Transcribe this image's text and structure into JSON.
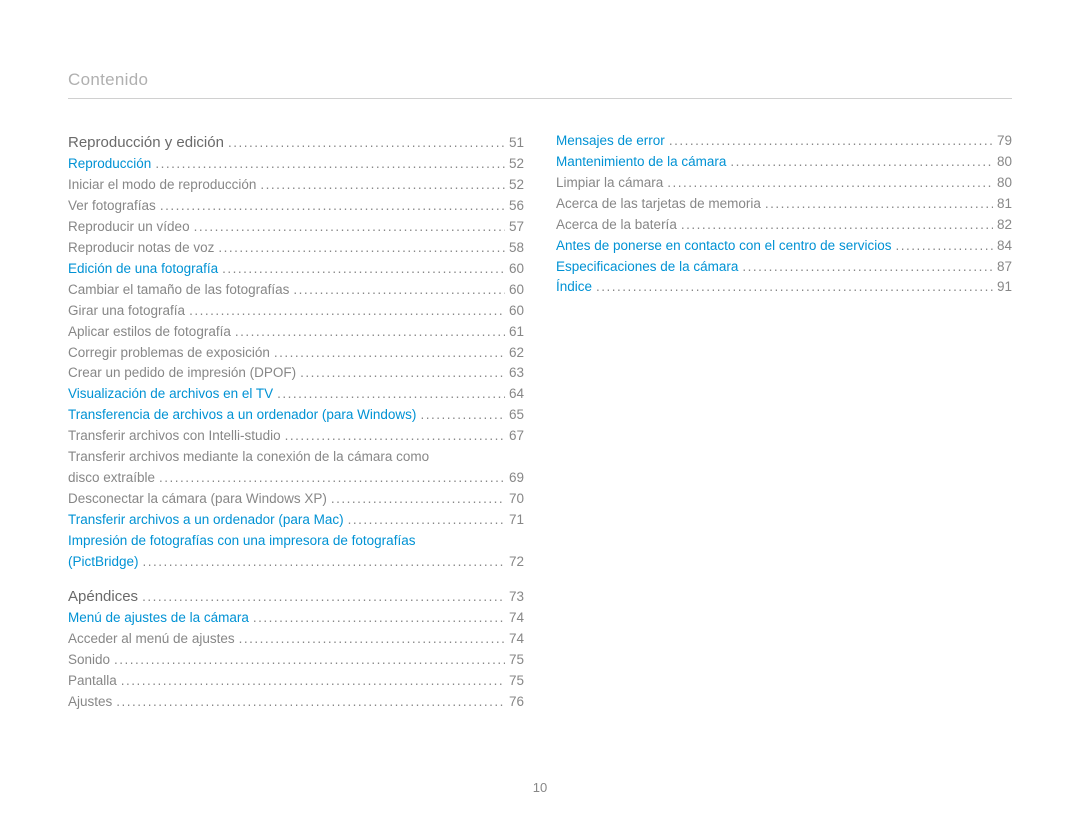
{
  "header": "Contenido",
  "pageNumber": "10",
  "colors": {
    "headerText": "#b0b0b0",
    "divider": "#d0d0d0",
    "plainText": "#878787",
    "linkText": "#0092d4",
    "sectionText": "#6a6a6a",
    "background": "#ffffff"
  },
  "typography": {
    "headerSize": 17,
    "lineSize": 13.5,
    "sectionSize": 15,
    "lineHeight": 1.55
  },
  "columns": [
    [
      {
        "type": "section",
        "text": "Reproducción y edición",
        "page": "51"
      },
      {
        "type": "link",
        "text": "Reproducción",
        "page": "52"
      },
      {
        "type": "plain",
        "text": "Iniciar el modo de reproducción",
        "page": "52"
      },
      {
        "type": "plain",
        "text": "Ver fotografías",
        "page": "56"
      },
      {
        "type": "plain",
        "text": "Reproducir un vídeo",
        "page": "57"
      },
      {
        "type": "plain",
        "text": "Reproducir notas de voz",
        "page": "58"
      },
      {
        "type": "link",
        "text": "Edición de una fotografía",
        "page": "60"
      },
      {
        "type": "plain",
        "text": "Cambiar el tamaño de las fotografías",
        "page": "60"
      },
      {
        "type": "plain",
        "text": "Girar una fotografía",
        "page": "60"
      },
      {
        "type": "plain",
        "text": "Aplicar estilos de fotografía",
        "page": "61"
      },
      {
        "type": "plain",
        "text": "Corregir problemas de exposición",
        "page": "62"
      },
      {
        "type": "plain",
        "text": "Crear un pedido de impresión (DPOF)",
        "page": "63"
      },
      {
        "type": "link",
        "text": "Visualización de archivos en el TV",
        "page": "64"
      },
      {
        "type": "link",
        "text": "Transferencia de archivos a un ordenador (para Windows)",
        "page": "65"
      },
      {
        "type": "plain",
        "text": "Transferir archivos con Intelli-studio",
        "page": "67"
      },
      {
        "type": "plain",
        "text": "Transferir archivos mediante la conexión de la cámara como",
        "nowrap": true
      },
      {
        "type": "plain",
        "text": "disco extraíble",
        "page": "69"
      },
      {
        "type": "plain",
        "text": "Desconectar la cámara (para Windows XP)",
        "page": "70"
      },
      {
        "type": "link",
        "text": "Transferir archivos a un ordenador (para Mac)",
        "page": "71"
      },
      {
        "type": "link",
        "text": "Impresión de fotografías con una impresora de fotografías",
        "nowrap": true
      },
      {
        "type": "link",
        "text": "(PictBridge)",
        "page": "72"
      },
      {
        "type": "gap"
      },
      {
        "type": "section",
        "text": "Apéndices",
        "page": "73"
      },
      {
        "type": "link",
        "text": "Menú de ajustes de la cámara",
        "page": "74"
      },
      {
        "type": "plain",
        "text": "Acceder al menú de ajustes",
        "page": "74"
      },
      {
        "type": "plain",
        "text": "Sonido",
        "page": "75"
      },
      {
        "type": "plain",
        "text": "Pantalla",
        "page": "75"
      },
      {
        "type": "plain",
        "text": "Ajustes",
        "page": "76"
      }
    ],
    [
      {
        "type": "link",
        "text": "Mensajes de error",
        "page": "79"
      },
      {
        "type": "link",
        "text": "Mantenimiento de la cámara",
        "page": "80"
      },
      {
        "type": "plain",
        "text": "Limpiar la cámara",
        "page": "80"
      },
      {
        "type": "plain",
        "text": "Acerca de las tarjetas de memoria",
        "page": "81"
      },
      {
        "type": "plain",
        "text": "Acerca de la batería",
        "page": "82"
      },
      {
        "type": "link",
        "text": "Antes de ponerse en contacto con el centro de servicios",
        "page": "84"
      },
      {
        "type": "link",
        "text": "Especificaciones de la cámara",
        "page": "87"
      },
      {
        "type": "link",
        "text": "Índice",
        "page": "91"
      }
    ]
  ]
}
